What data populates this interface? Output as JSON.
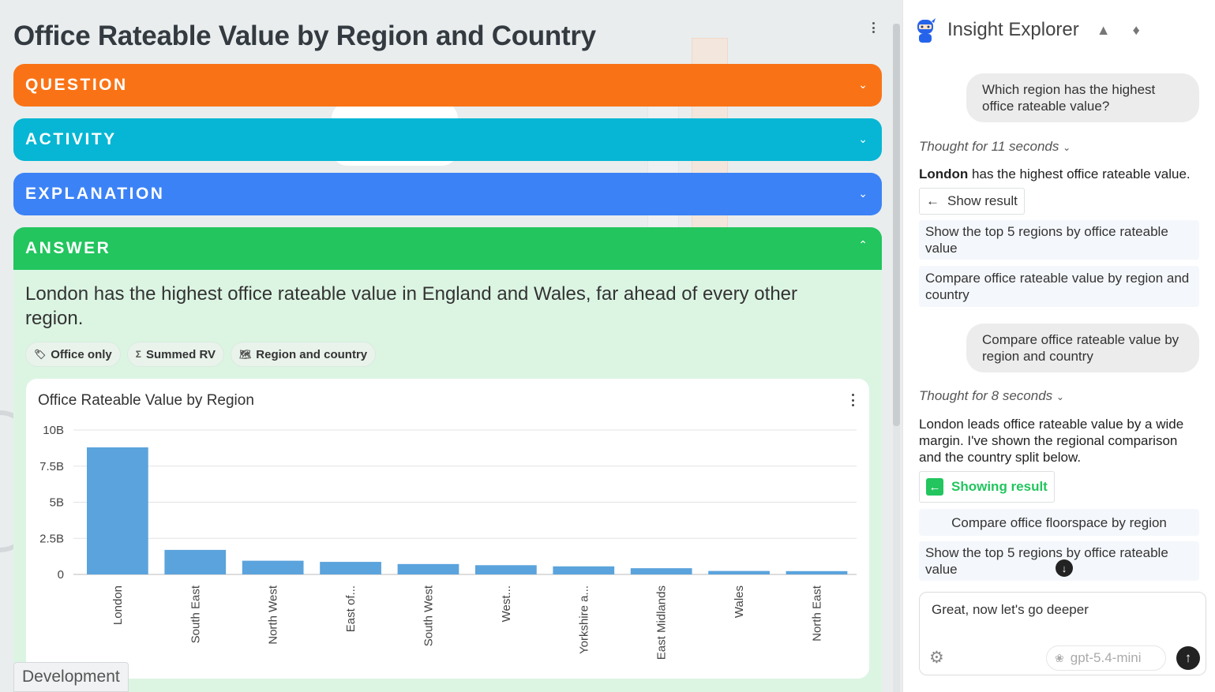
{
  "page": {
    "title": "Office Rateable Value by Region and Country"
  },
  "sections": {
    "question": "QUESTION",
    "activity": "ACTIVITY",
    "explanation": "EXPLANATION",
    "answer": "ANSWER"
  },
  "answer": {
    "text": "London has the highest office rateable value in England and Wales, far ahead of every other region.",
    "chips": [
      {
        "icon": "tag-icon",
        "glyph": "🏷",
        "label": "Office only"
      },
      {
        "icon": "sigma-icon",
        "glyph": "Σ",
        "label": "Summed RV"
      },
      {
        "icon": "world-map-icon",
        "glyph": "🗺",
        "label": "Region and country"
      }
    ]
  },
  "chart_data": {
    "type": "bar",
    "title": "Office Rateable Value by Region",
    "categories": [
      "London",
      "South East",
      "North West",
      "East of...",
      "South West",
      "West...",
      "Yorkshire a...",
      "East Midlands",
      "Wales",
      "North East"
    ],
    "values": [
      8800000000,
      1700000000,
      950000000,
      870000000,
      720000000,
      640000000,
      560000000,
      430000000,
      240000000,
      230000000
    ],
    "ylim": [
      0,
      10000000000
    ],
    "yticks": [
      {
        "value": 0,
        "label": "0"
      },
      {
        "value": 2500000000,
        "label": "2.5B"
      },
      {
        "value": 5000000000,
        "label": "5B"
      },
      {
        "value": 7500000000,
        "label": "7.5B"
      },
      {
        "value": 10000000000,
        "label": "10B"
      }
    ],
    "bar_color": "#5ba3dc",
    "grid": true,
    "xlabel": "",
    "ylabel": ""
  },
  "badge": {
    "environment": "Development"
  },
  "panel": {
    "app_title": "Insight Explorer",
    "messages": {
      "user1": "Which region has the highest office rateable value?",
      "thought1": "Thought for 11 seconds",
      "ai1_bold": "London",
      "ai1_rest": " has the highest office rateable value.",
      "show_result": "Show result",
      "suggest1": "Show the top 5 regions by office rateable value",
      "suggest2": "Compare office rateable value by region and country",
      "user2": "Compare office rateable value by region and country",
      "thought2": "Thought for 8 seconds",
      "ai2": "London leads office rateable value by a wide margin. I've shown the regional comparison and the country split below.",
      "showing_result": "Showing result",
      "suggest3": "Compare office floorspace by region",
      "suggest4": "Show the top 5 regions by office rateable value"
    },
    "input": {
      "value": "Great, now let's go deeper"
    },
    "model": "gpt-5.4-mini"
  }
}
